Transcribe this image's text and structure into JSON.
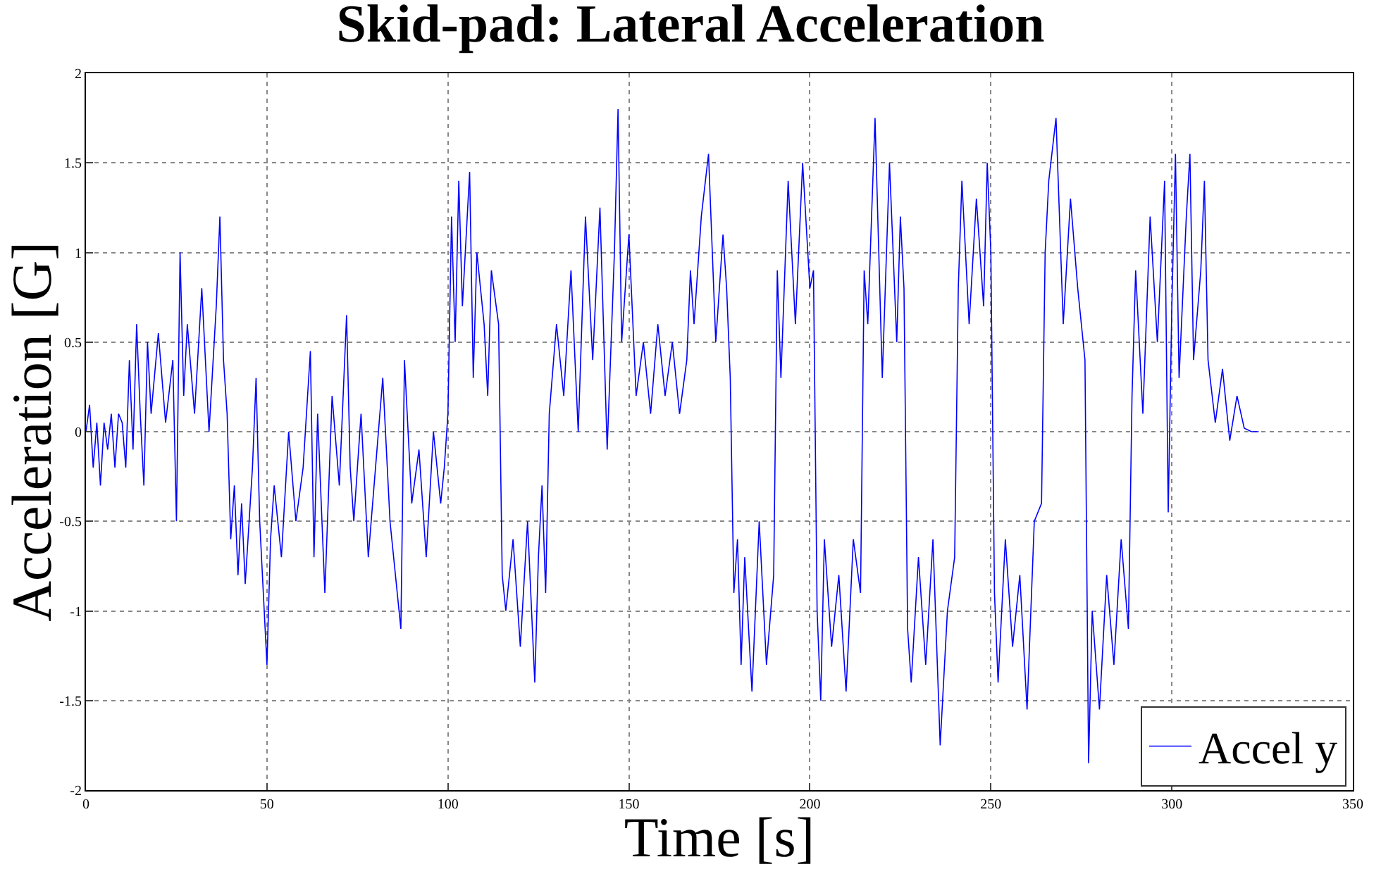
{
  "chart_data": {
    "type": "line",
    "title": "Skid-pad: Lateral Acceleration",
    "xlabel": "Time [s]",
    "ylabel": "Acceleration [G]",
    "xlim": [
      0,
      350
    ],
    "ylim": [
      -2,
      2
    ],
    "xticks": [
      0,
      50,
      100,
      150,
      200,
      250,
      300,
      350
    ],
    "yticks": [
      -2,
      -1.5,
      -1,
      -0.5,
      0,
      0.5,
      1,
      1.5,
      2
    ],
    "grid": true,
    "legend": "bottom right",
    "line_style": "solid",
    "series": [
      {
        "name": "Accel y",
        "color": "#0000ff",
        "x": [
          0,
          1,
          2,
          3,
          4,
          5,
          6,
          7,
          8,
          9,
          10,
          11,
          12,
          13,
          14,
          15,
          16,
          17,
          18,
          20,
          22,
          24,
          25,
          26,
          27,
          28,
          30,
          32,
          34,
          36,
          37,
          38,
          39,
          40,
          41,
          42,
          43,
          44,
          46,
          47,
          48,
          49,
          50,
          51,
          52,
          54,
          56,
          58,
          60,
          62,
          63,
          64,
          66,
          68,
          70,
          72,
          73,
          74,
          76,
          78,
          80,
          82,
          84,
          86,
          87,
          88,
          90,
          92,
          94,
          96,
          98,
          99,
          100,
          101,
          102,
          103,
          104,
          106,
          107,
          108,
          110,
          111,
          112,
          114,
          115,
          116,
          118,
          120,
          122,
          124,
          125,
          126,
          127,
          128,
          130,
          132,
          134,
          136,
          138,
          140,
          142,
          144,
          146,
          147,
          148,
          150,
          152,
          154,
          156,
          158,
          160,
          162,
          164,
          166,
          167,
          168,
          170,
          172,
          174,
          176,
          177,
          178,
          179,
          180,
          181,
          182,
          184,
          186,
          188,
          190,
          191,
          192,
          194,
          196,
          198,
          200,
          201,
          202,
          203,
          204,
          206,
          208,
          210,
          212,
          214,
          215,
          216,
          218,
          220,
          222,
          224,
          225,
          226,
          227,
          228,
          230,
          232,
          234,
          236,
          238,
          240,
          241,
          242,
          244,
          246,
          248,
          249,
          250,
          251,
          252,
          254,
          256,
          258,
          260,
          262,
          264,
          265,
          266,
          268,
          270,
          272,
          274,
          276,
          277,
          278,
          280,
          282,
          284,
          286,
          288,
          289,
          290,
          292,
          294,
          296,
          298,
          299,
          300,
          301,
          302,
          304,
          305,
          306,
          308,
          309,
          310,
          312,
          314,
          316,
          318,
          320,
          322,
          324
        ],
        "values": [
          0,
          0.15,
          -0.2,
          0.05,
          -0.3,
          0.05,
          -0.1,
          0.1,
          -0.2,
          0.1,
          0.05,
          -0.2,
          0.4,
          -0.1,
          0.6,
          0.1,
          -0.3,
          0.5,
          0.1,
          0.55,
          0.05,
          0.4,
          -0.5,
          1.0,
          0.2,
          0.6,
          0.1,
          0.8,
          0.0,
          0.7,
          1.2,
          0.4,
          0.1,
          -0.6,
          -0.3,
          -0.8,
          -0.4,
          -0.85,
          -0.2,
          0.3,
          -0.5,
          -0.9,
          -1.3,
          -0.6,
          -0.3,
          -0.7,
          0.0,
          -0.5,
          -0.2,
          0.45,
          -0.7,
          0.1,
          -0.9,
          0.2,
          -0.3,
          0.65,
          -0.2,
          -0.5,
          0.1,
          -0.7,
          -0.2,
          0.3,
          -0.5,
          -0.9,
          -1.1,
          0.4,
          -0.4,
          -0.1,
          -0.7,
          0.0,
          -0.4,
          -0.2,
          0.1,
          1.2,
          0.5,
          1.4,
          0.7,
          1.45,
          0.3,
          1.0,
          0.6,
          0.2,
          0.9,
          0.6,
          -0.8,
          -1.0,
          -0.6,
          -1.2,
          -0.5,
          -1.4,
          -0.7,
          -0.3,
          -0.9,
          0.1,
          0.6,
          0.2,
          0.9,
          0.0,
          1.2,
          0.4,
          1.25,
          -0.1,
          1.0,
          1.8,
          0.5,
          1.1,
          0.2,
          0.5,
          0.1,
          0.6,
          0.2,
          0.5,
          0.1,
          0.4,
          0.9,
          0.6,
          1.2,
          1.55,
          0.5,
          1.1,
          0.8,
          0.3,
          -0.9,
          -0.6,
          -1.3,
          -0.7,
          -1.45,
          -0.5,
          -1.3,
          -0.8,
          0.9,
          0.3,
          1.4,
          0.6,
          1.5,
          0.8,
          0.9,
          -1.0,
          -1.5,
          -0.6,
          -1.2,
          -0.8,
          -1.45,
          -0.6,
          -0.9,
          0.9,
          0.6,
          1.75,
          0.3,
          1.5,
          0.5,
          1.2,
          0.8,
          -1.1,
          -1.4,
          -0.7,
          -1.3,
          -0.6,
          -1.75,
          -1.0,
          -0.7,
          0.8,
          1.4,
          0.6,
          1.3,
          0.7,
          1.5,
          1.0,
          -0.9,
          -1.4,
          -0.6,
          -1.2,
          -0.8,
          -1.55,
          -0.5,
          -0.4,
          1.0,
          1.4,
          1.75,
          0.6,
          1.3,
          0.8,
          0.4,
          -1.85,
          -1.0,
          -1.55,
          -0.8,
          -1.3,
          -0.6,
          -1.1,
          0.2,
          0.9,
          0.1,
          1.2,
          0.5,
          1.4,
          -0.45,
          0.7,
          1.55,
          0.3,
          1.2,
          1.55,
          0.4,
          0.9,
          1.4,
          0.4,
          0.05,
          0.35,
          -0.05,
          0.2,
          0.02,
          0.0,
          0.0
        ]
      }
    ]
  }
}
